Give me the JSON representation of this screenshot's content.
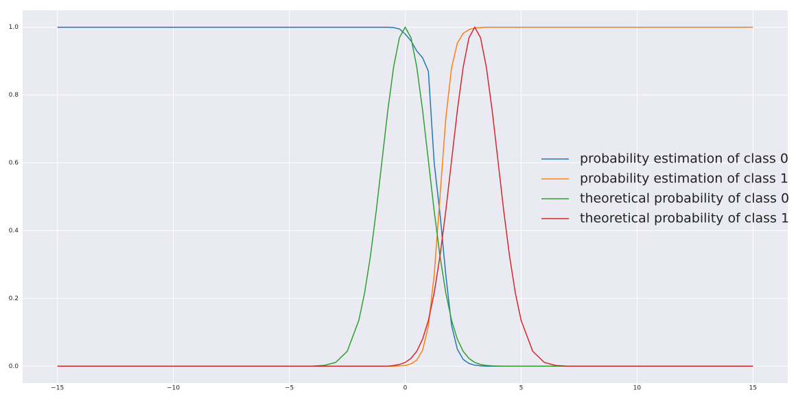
{
  "chart_data": {
    "type": "line",
    "x": [
      -15,
      -10,
      -5,
      -4,
      -3.5,
      -3,
      -2.5,
      -2,
      -1.75,
      -1.5,
      -1.25,
      -1,
      -0.75,
      -0.5,
      -0.25,
      0,
      0.25,
      0.5,
      0.75,
      1,
      1.25,
      1.5,
      1.75,
      2,
      2.25,
      2.5,
      2.75,
      3,
      3.25,
      3.5,
      3.75,
      4,
      4.25,
      4.5,
      4.75,
      5,
      5.5,
      6,
      6.5,
      7,
      8,
      10,
      15
    ],
    "series": [
      {
        "name": "probability estimation of class 0",
        "color": "#1f77b4",
        "values": [
          1,
          1,
          1,
          1,
          1,
          1,
          1,
          1,
          1,
          1,
          1,
          1,
          1,
          0.999,
          0.995,
          0.98,
          0.96,
          0.93,
          0.91,
          0.87,
          0.6,
          0.45,
          0.27,
          0.12,
          0.05,
          0.02,
          0.008,
          0.003,
          0.001,
          0,
          0,
          0,
          0,
          0,
          0,
          0,
          0,
          0,
          0,
          0,
          0,
          0,
          0
        ]
      },
      {
        "name": "probability estimation of class 1",
        "color": "#ff7f0e",
        "values": [
          0,
          0,
          0,
          0,
          0,
          0,
          0,
          0,
          0,
          0,
          0,
          0,
          0,
          0,
          0.001,
          0.002,
          0.007,
          0.018,
          0.047,
          0.119,
          0.269,
          0.5,
          0.731,
          0.881,
          0.953,
          0.982,
          0.993,
          0.998,
          0.999,
          1,
          1,
          1,
          1,
          1,
          1,
          1,
          1,
          1,
          1,
          1,
          1,
          1,
          1
        ]
      },
      {
        "name": "theoretical  probability of class 0",
        "color": "#2ca02c",
        "values": [
          0,
          0,
          0,
          0.0003,
          0.0022,
          0.0111,
          0.0439,
          0.1353,
          0.2163,
          0.3247,
          0.4578,
          0.6065,
          0.7548,
          0.8825,
          0.9692,
          1,
          0.9692,
          0.8825,
          0.7548,
          0.6065,
          0.4578,
          0.3247,
          0.2163,
          0.1353,
          0.0796,
          0.0439,
          0.0228,
          0.0111,
          0.0051,
          0.0022,
          0.0009,
          0.0003,
          0,
          0,
          0,
          0,
          0,
          0,
          0,
          0,
          0,
          0,
          0
        ]
      },
      {
        "name": "theoretical  probability of class 1",
        "color": "#d62728",
        "values": [
          0,
          0,
          0,
          0,
          0,
          0,
          0,
          0,
          0,
          0,
          0,
          0,
          0,
          0.002,
          0.005,
          0.011,
          0.023,
          0.044,
          0.08,
          0.135,
          0.216,
          0.325,
          0.458,
          0.607,
          0.755,
          0.882,
          0.969,
          1,
          0.969,
          0.882,
          0.755,
          0.607,
          0.458,
          0.325,
          0.216,
          0.135,
          0.044,
          0.011,
          0.002,
          0,
          0,
          0,
          0
        ]
      }
    ],
    "xlim": [
      -16.5,
      16.5
    ],
    "ylim": [
      -0.05,
      1.05
    ],
    "xticks": [
      {
        "value": -15,
        "label": "−15"
      },
      {
        "value": -10,
        "label": "−10"
      },
      {
        "value": -5,
        "label": "−5"
      },
      0,
      5,
      10,
      15
    ],
    "yticks": [
      {
        "value": 0,
        "label": "0.0"
      },
      0.2,
      0.4,
      0.6,
      0.8,
      {
        "value": 1,
        "label": "1.0"
      }
    ],
    "grid": true,
    "legend_loc": "center right"
  }
}
